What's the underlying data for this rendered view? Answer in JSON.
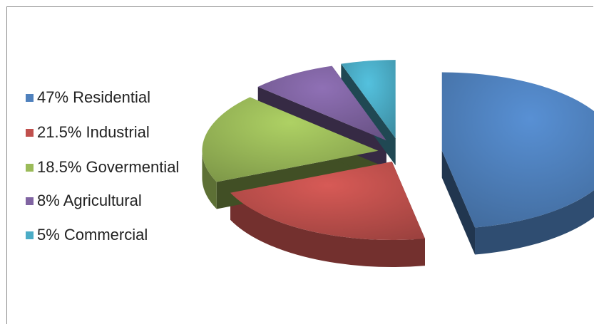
{
  "chart_data": {
    "type": "pie",
    "title": "",
    "slices": [
      {
        "label": "47% Residential",
        "value": 47,
        "color": "#4f81bd"
      },
      {
        "label": "21.5% Industrial",
        "value": 21.5,
        "color": "#c0504d"
      },
      {
        "label": "18.5% Govermential",
        "value": 18.5,
        "color": "#9bbb59"
      },
      {
        "label": "8% Agricultural",
        "value": 8,
        "color": "#8064a2"
      },
      {
        "label": "5% Commercial",
        "value": 5,
        "color": "#4bacc6"
      }
    ],
    "legend_position": "left",
    "style": "3d exploded"
  }
}
